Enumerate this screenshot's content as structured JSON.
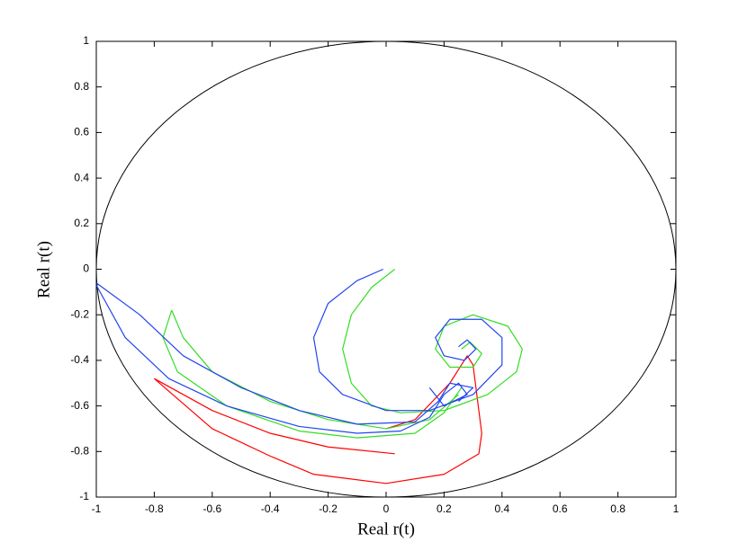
{
  "chart_data": {
    "type": "line",
    "xlabel": "Real r(t)",
    "ylabel": "Real r(t)",
    "xlim": [
      -1,
      1
    ],
    "ylim": [
      -1,
      1
    ],
    "xticks": [
      -1,
      -0.8,
      -0.6,
      -0.4,
      -0.2,
      0,
      0.2,
      0.4,
      0.6,
      0.8,
      1
    ],
    "yticks": [
      -1,
      -0.8,
      -0.6,
      -0.4,
      -0.2,
      0,
      0.2,
      0.4,
      0.6,
      0.8,
      1
    ],
    "grid": false,
    "series": [
      {
        "color": "#ff0000",
        "x": [
          -0.8,
          -0.6,
          -0.4,
          -0.2,
          0.03
        ],
        "values": [
          -0.48,
          -0.62,
          -0.72,
          -0.78,
          -0.81
        ]
      },
      {
        "color": "#ff0000",
        "x": [
          -0.8,
          -0.6,
          -0.4,
          -0.25,
          0.0,
          0.2,
          0.32,
          0.33,
          0.3,
          0.28,
          0.22,
          0.1,
          0.0
        ],
        "values": [
          -0.48,
          -0.7,
          -0.82,
          -0.9,
          -0.94,
          -0.9,
          -0.81,
          -0.72,
          -0.42,
          -0.38,
          -0.5,
          -0.66,
          -0.7
        ]
      },
      {
        "color": "#33dd22",
        "x": [
          0.03,
          -0.05,
          -0.12,
          -0.15,
          -0.12,
          -0.05,
          0.05,
          0.2,
          0.35,
          0.45,
          0.47,
          0.42,
          0.3,
          0.2,
          0.17,
          0.22,
          0.3,
          0.33,
          0.29,
          0.26
        ],
        "values": [
          0.0,
          -0.08,
          -0.2,
          -0.35,
          -0.5,
          -0.6,
          -0.63,
          -0.62,
          -0.55,
          -0.45,
          -0.35,
          -0.25,
          -0.2,
          -0.25,
          -0.35,
          -0.43,
          -0.43,
          -0.37,
          -0.32,
          -0.35
        ]
      },
      {
        "color": "#33dd22",
        "x": [
          -0.74,
          -0.77,
          -0.72,
          -0.55,
          -0.3,
          -0.1,
          0.1,
          0.2,
          0.26
        ],
        "values": [
          -0.18,
          -0.3,
          -0.45,
          -0.6,
          -0.71,
          -0.74,
          -0.72,
          -0.63,
          -0.52
        ]
      },
      {
        "color": "#33dd22",
        "x": [
          -0.74,
          -0.7,
          -0.6,
          -0.4,
          -0.2,
          0.0,
          0.15,
          0.25
        ],
        "values": [
          -0.18,
          -0.3,
          -0.45,
          -0.58,
          -0.66,
          -0.7,
          -0.66,
          -0.55
        ]
      },
      {
        "color": "#2244ee",
        "x": [
          -0.01,
          -0.1,
          -0.2,
          -0.25,
          -0.23,
          -0.15,
          0.0,
          0.15,
          0.3,
          0.4,
          0.4,
          0.33,
          0.22,
          0.17,
          0.2,
          0.27,
          0.31,
          0.28,
          0.25
        ],
        "values": [
          0.0,
          -0.05,
          -0.15,
          -0.3,
          -0.45,
          -0.55,
          -0.62,
          -0.62,
          -0.55,
          -0.42,
          -0.3,
          -0.22,
          -0.22,
          -0.3,
          -0.38,
          -0.4,
          -0.35,
          -0.31,
          -0.34
        ]
      },
      {
        "color": "#2244ee",
        "x": [
          -1,
          -0.9,
          -0.75,
          -0.55,
          -0.3,
          -0.1,
          0.05,
          0.15,
          0.2,
          0.25,
          0.28,
          0.2,
          0.15
        ],
        "values": [
          -0.07,
          -0.3,
          -0.48,
          -0.6,
          -0.69,
          -0.72,
          -0.71,
          -0.65,
          -0.55,
          -0.5,
          -0.55,
          -0.6,
          -0.52
        ]
      },
      {
        "color": "#2244ee",
        "x": [
          -1,
          -0.85,
          -0.7,
          -0.5,
          -0.3,
          -0.1,
          0.1,
          0.18,
          0.22,
          0.3,
          0.25
        ],
        "values": [
          -0.06,
          -0.2,
          -0.38,
          -0.52,
          -0.62,
          -0.68,
          -0.67,
          -0.58,
          -0.5,
          -0.52,
          -0.58
        ]
      }
    ]
  }
}
